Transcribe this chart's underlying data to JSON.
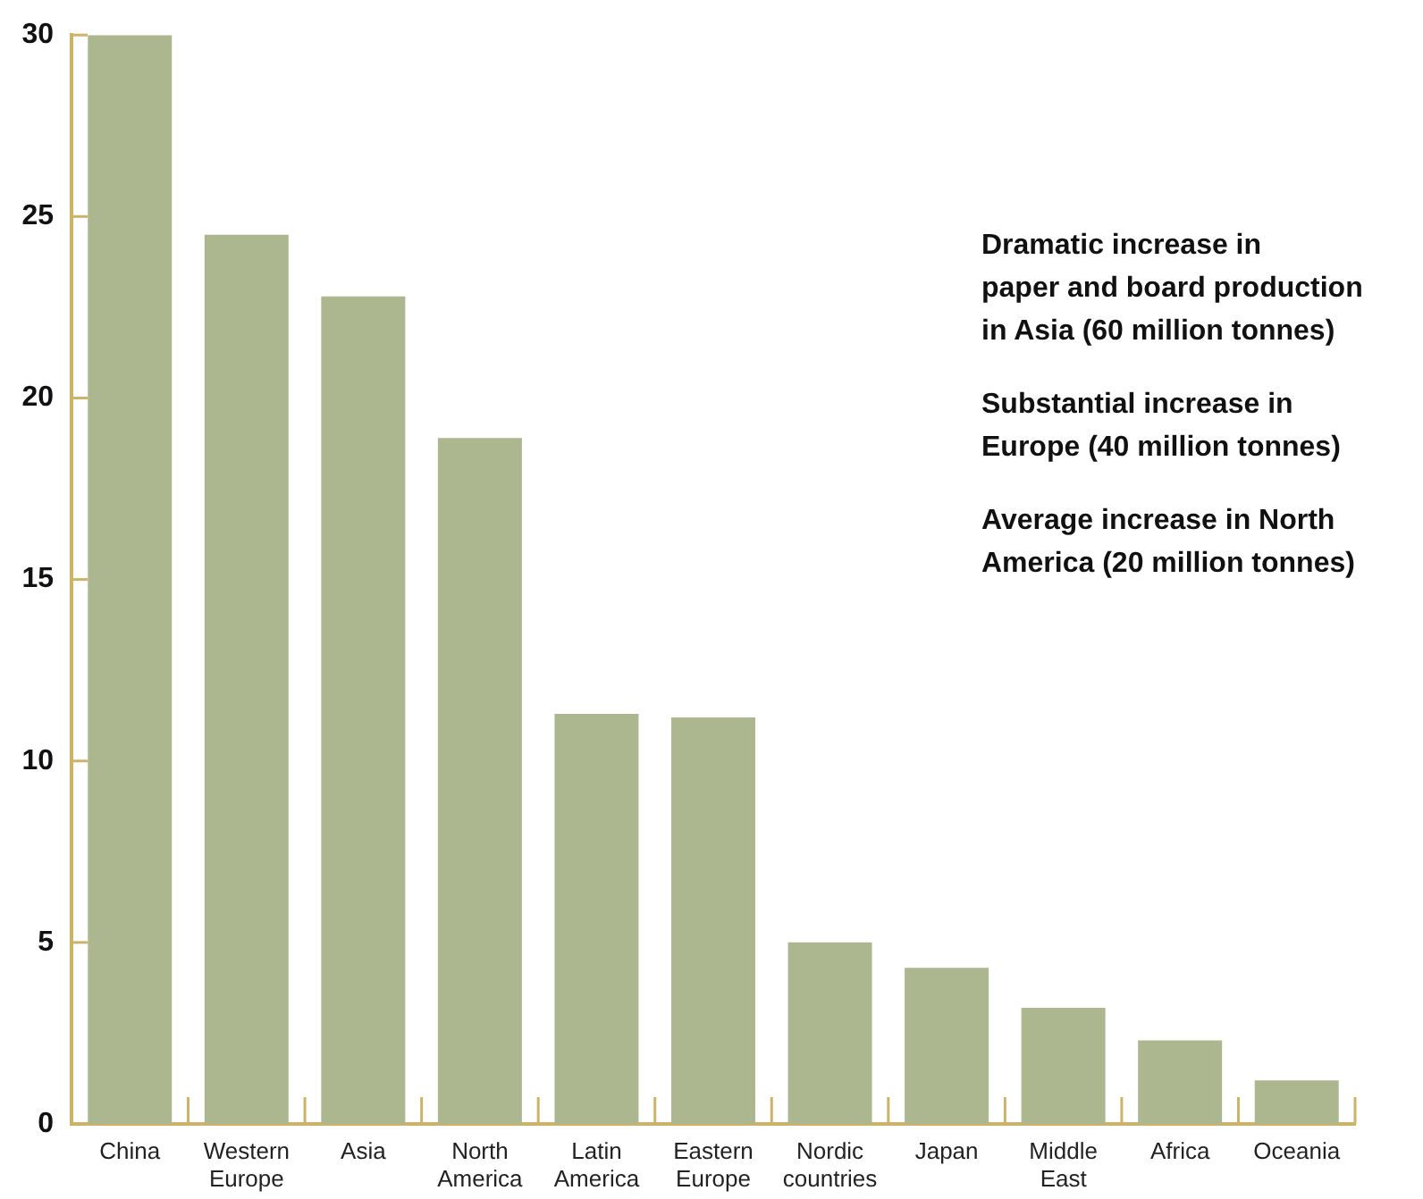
{
  "chart_data": {
    "type": "bar",
    "categories": [
      "China",
      "Western Europe",
      "Asia",
      "North America",
      "Latin America",
      "Eastern Europe",
      "Nordic countries",
      "Japan",
      "Middle East",
      "Africa",
      "Oceania"
    ],
    "values": [
      30.0,
      24.5,
      22.8,
      18.9,
      11.3,
      11.2,
      5.0,
      4.3,
      3.2,
      2.3,
      1.2
    ],
    "color": "#adb78f",
    "ylim": [
      0,
      30
    ],
    "yticks": [
      0,
      5,
      10,
      15,
      20,
      25,
      30
    ],
    "annotations": [
      "Dramatic increase in\npaper and board production\nin Asia (60 million tonnes)",
      "Substantial increase in\nEurope (40 million tonnes)",
      "Average increase in North\nAmerica (20 million tonnes)"
    ]
  }
}
